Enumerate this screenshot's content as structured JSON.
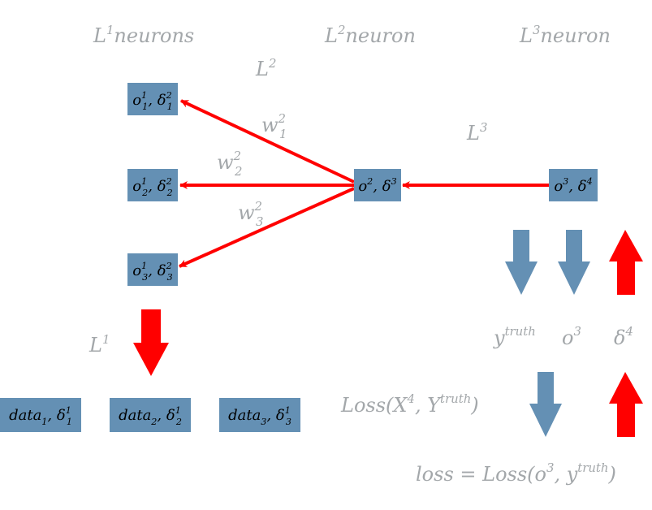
{
  "headers": {
    "l1": {
      "base": "L",
      "sup": "1",
      "rest": "neurons"
    },
    "l2": {
      "base": "L",
      "sup": "2",
      "rest": "neuron"
    },
    "l3": {
      "base": "L",
      "sup": "3",
      "rest": "neuron"
    }
  },
  "layer_labels": {
    "l2": {
      "base": "L",
      "sup": "2"
    },
    "l3": {
      "base": "L",
      "sup": "3"
    },
    "l1": {
      "base": "L",
      "sup": "1"
    }
  },
  "nodes": {
    "l1_1": {
      "o": "o",
      "o_sup": "1",
      "o_sub": "1",
      "d": "δ",
      "d_sup": "2",
      "d_sub": "1"
    },
    "l1_2": {
      "o": "o",
      "o_sup": "1",
      "o_sub": "2",
      "d": "δ",
      "d_sup": "2",
      "d_sub": "2"
    },
    "l1_3": {
      "o": "o",
      "o_sup": "1",
      "o_sub": "3",
      "d": "δ",
      "d_sup": "2",
      "d_sub": "3"
    },
    "l2": {
      "o": "o",
      "o_sup": "2",
      "d": "δ",
      "d_sup": "3"
    },
    "l3": {
      "o": "o",
      "o_sup": "3",
      "d": "δ",
      "d_sup": "4"
    }
  },
  "weights": {
    "w1": {
      "base": "w",
      "sup": "2",
      "sub": "1"
    },
    "w2": {
      "base": "w",
      "sup": "2",
      "sub": "2"
    },
    "w3": {
      "base": "w",
      "sup": "2",
      "sub": "3"
    }
  },
  "data_nodes": {
    "d1": {
      "base": "data",
      "sub": "1",
      "d": "δ",
      "d_sup": "1",
      "d_sub": "1"
    },
    "d2": {
      "base": "data",
      "sub": "2",
      "d": "δ",
      "d_sup": "1",
      "d_sub": "2"
    },
    "d3": {
      "base": "data",
      "sub": "3",
      "d": "δ",
      "d_sup": "1",
      "d_sub": "3"
    }
  },
  "output_labels": {
    "ytruth": {
      "base": "y",
      "sup": "truth"
    },
    "o3": {
      "base": "o",
      "sup": "3"
    },
    "delta4": {
      "base": "δ",
      "sup": "4"
    }
  },
  "loss_fn": {
    "pre": "Loss(X",
    "sup1": "4",
    "mid": ", Y",
    "sup2": "truth",
    "post": ")"
  },
  "loss_eq": {
    "pre": "loss = Loss(o",
    "sup1": "3",
    "mid": ", y",
    "sup2": "truth",
    "post": ")"
  },
  "colors": {
    "box": "#6490b4",
    "arrow_red": "#ff0000",
    "arrow_blue": "#6490b4",
    "label": "#a3a7aa"
  }
}
